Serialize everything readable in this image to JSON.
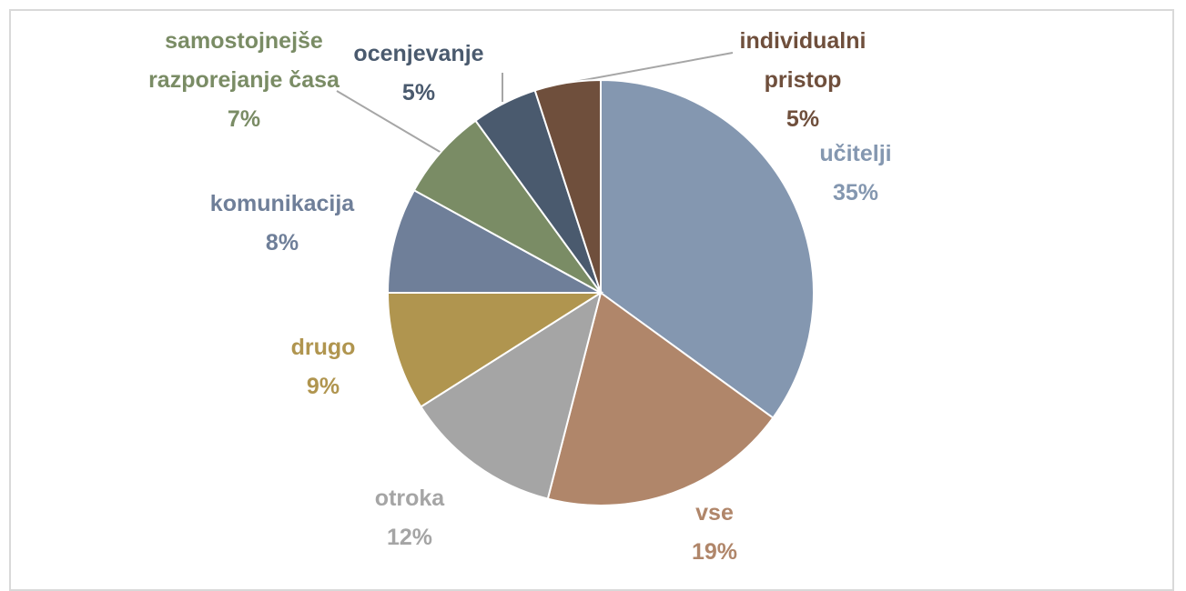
{
  "chart_data": {
    "type": "pie",
    "categories": [
      "učitelji",
      "vse",
      "otroka",
      "drugo",
      "komunikacija",
      "samostojnejše razporejanje časa",
      "ocenjevanje",
      "individualni pristop"
    ],
    "values": [
      35,
      19,
      12,
      9,
      8,
      7,
      5,
      5
    ],
    "value_labels": [
      "35%",
      "19%",
      "12%",
      "9%",
      "8%",
      "7%",
      "5%",
      "5%"
    ],
    "colors": [
      "#8497b0",
      "#b0866a",
      "#a5a5a5",
      "#b0954f",
      "#6f7f99",
      "#7a8c65",
      "#4a5a6e",
      "#6f4f3c"
    ]
  }
}
